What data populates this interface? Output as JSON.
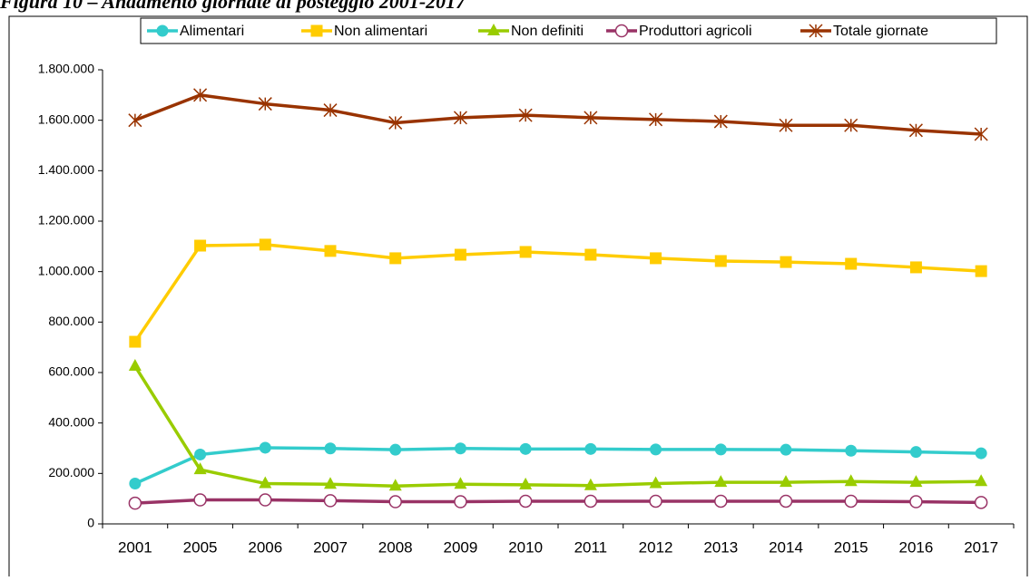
{
  "chart_data": {
    "type": "line",
    "title": "Figura 10 – Andamento giornate di posteggio 2001-2017",
    "categories": [
      "2001",
      "2005",
      "2006",
      "2007",
      "2008",
      "2009",
      "2010",
      "2011",
      "2012",
      "2013",
      "2014",
      "2015",
      "2016",
      "2017"
    ],
    "series": [
      {
        "name": "Alimentari",
        "color": "#33cccc",
        "marker": "circle",
        "values": [
          160000,
          275000,
          302000,
          299000,
          294000,
          299000,
          297000,
          297000,
          295000,
          295000,
          294000,
          290000,
          285000,
          280000
        ]
      },
      {
        "name": "Non alimentari",
        "color": "#ffcc00",
        "marker": "square",
        "values": [
          722000,
          1103000,
          1107000,
          1082000,
          1053000,
          1067000,
          1078000,
          1067000,
          1053000,
          1042000,
          1038000,
          1031000,
          1017000,
          1002000
        ]
      },
      {
        "name": "Non definiti",
        "color": "#99cc00",
        "marker": "triangle",
        "values": [
          625000,
          215000,
          160000,
          157000,
          150000,
          157000,
          155000,
          152000,
          160000,
          165000,
          165000,
          168000,
          165000,
          168000
        ]
      },
      {
        "name": "Produttori agricoli",
        "color": "#993366",
        "marker": "open-circle",
        "values": [
          82000,
          95000,
          95000,
          92000,
          88000,
          88000,
          90000,
          90000,
          90000,
          90000,
          90000,
          90000,
          88000,
          85000
        ]
      },
      {
        "name": "Totale giornate",
        "color": "#993300",
        "marker": "star",
        "values": [
          1600000,
          1700000,
          1665000,
          1640000,
          1590000,
          1610000,
          1620000,
          1610000,
          1603000,
          1595000,
          1580000,
          1580000,
          1560000,
          1545000
        ]
      }
    ],
    "ylim": [
      0,
      1800000
    ],
    "yticks": [
      0,
      {
        "value": 200000,
        "label": "200.000"
      },
      {
        "value": 400000,
        "label": "400.000"
      },
      {
        "value": 600000,
        "label": "600.000"
      },
      {
        "value": 800000,
        "label": "800.000"
      },
      {
        "value": 1000000,
        "label": "1.000.000"
      },
      {
        "value": 1200000,
        "label": "1.200.000"
      },
      {
        "value": 1400000,
        "label": "1.400.000"
      },
      {
        "value": 1600000,
        "label": "1.600.000"
      },
      {
        "value": 1800000,
        "label": "1.800.000"
      }
    ],
    "grid": false,
    "legend": "top"
  }
}
